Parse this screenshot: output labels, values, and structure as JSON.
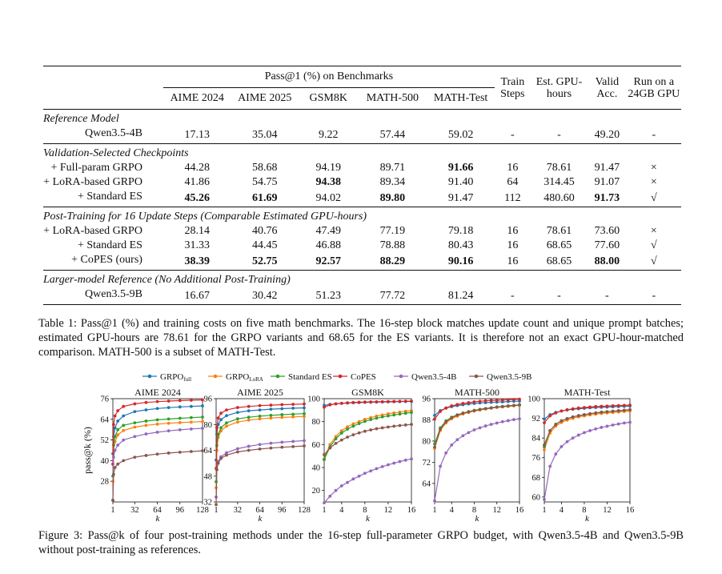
{
  "table": {
    "group_header": "Pass@1 (%) on Benchmarks",
    "bench_headers": [
      "AIME 2024",
      "AIME 2025",
      "GSM8K",
      "MATH-500",
      "MATH-Test"
    ],
    "extra_headers": [
      [
        "Train",
        "Steps"
      ],
      [
        "Est. GPU-",
        "hours"
      ],
      [
        "Valid",
        "Acc."
      ],
      [
        "Run on a",
        "24GB GPU"
      ]
    ],
    "sections": [
      {
        "title": "Reference Model",
        "rows": [
          {
            "label": "Qwen3.5-4B",
            "cells": [
              "17.13",
              "35.04",
              "9.22",
              "57.44",
              "59.02",
              "-",
              "-",
              "49.20",
              "-"
            ],
            "bold": []
          }
        ]
      },
      {
        "title": "Validation-Selected Checkpoints",
        "rows": [
          {
            "label": "+ Full-param GRPO",
            "cells": [
              "44.28",
              "58.68",
              "94.19",
              "89.71",
              "91.66",
              "16",
              "78.61",
              "91.47",
              "×"
            ],
            "bold": [
              4
            ]
          },
          {
            "label": "+ LoRA-based GRPO",
            "cells": [
              "41.86",
              "54.75",
              "94.38",
              "89.34",
              "91.40",
              "64",
              "314.45",
              "91.07",
              "×"
            ],
            "bold": [
              2
            ]
          },
          {
            "label": "+ Standard ES",
            "cells": [
              "45.26",
              "61.69",
              "94.02",
              "89.80",
              "91.47",
              "112",
              "480.60",
              "91.73",
              "√"
            ],
            "bold": [
              0,
              1,
              3,
              7
            ]
          }
        ]
      },
      {
        "title": "Post-Training for 16 Update Steps (Comparable Estimated GPU-hours)",
        "rows": [
          {
            "label": "+ LoRA-based GRPO",
            "cells": [
              "28.14",
              "40.76",
              "47.49",
              "77.19",
              "79.18",
              "16",
              "78.61",
              "73.60",
              "×"
            ],
            "bold": []
          },
          {
            "label": "+ Standard ES",
            "cells": [
              "31.33",
              "44.45",
              "46.88",
              "78.88",
              "80.43",
              "16",
              "68.65",
              "77.60",
              "√"
            ],
            "bold": []
          },
          {
            "label": "+ CoPES (ours)",
            "cells": [
              "38.39",
              "52.75",
              "92.57",
              "88.29",
              "90.16",
              "16",
              "68.65",
              "88.00",
              "√"
            ],
            "bold": [
              0,
              1,
              2,
              3,
              4,
              7
            ]
          }
        ]
      },
      {
        "title": "Larger-model Reference (No Additional Post-Training)",
        "rows": [
          {
            "label": "Qwen3.5-9B",
            "cells": [
              "16.67",
              "30.42",
              "51.23",
              "77.72",
              "81.24",
              "-",
              "-",
              "-",
              "-"
            ],
            "bold": []
          }
        ]
      }
    ],
    "caption": "Table 1: Pass@1 (%) and training costs on five math benchmarks. The 16-step block matches update count and unique prompt batches; estimated GPU-hours are 78.61 for the GRPO variants and 68.65 for the ES variants. It is therefore not an exact GPU-hour-matched comparison. MATH-500 is a subset of MATH-Test."
  },
  "figure": {
    "caption": "Figure 3: Pass@k of four post-training methods under the 16-step full-parameter GRPO budget, with Qwen3.5-4B and Qwen3.5-9B without post-training as references."
  },
  "chart_data": [
    {
      "type": "line",
      "title": "AIME 2024",
      "xlabel": "k",
      "ylabel": "pass@k (%)",
      "x": [
        1,
        2,
        4,
        8,
        16,
        32,
        48,
        64,
        80,
        96,
        112,
        128
      ],
      "xticks": [
        1,
        32,
        64,
        96,
        128
      ],
      "yticks": [
        28,
        40,
        52,
        64,
        76
      ],
      "ylim": [
        16,
        76
      ],
      "colors": [
        "#1f77b4",
        "#ff7f0e",
        "#2ca02c",
        "#d62728",
        "#9467bd",
        "#8c564b"
      ],
      "series": [
        {
          "name": "GRPO_full",
          "values": [
            44,
            54,
            59,
            63,
            66,
            68.5,
            69.5,
            70.3,
            70.8,
            71.2,
            71.5,
            71.8
          ]
        },
        {
          "name": "GRPO_LoRA",
          "values": [
            28,
            46,
            51,
            55,
            57.5,
            59.5,
            60.5,
            61.2,
            61.7,
            62.1,
            62.4,
            62.7
          ]
        },
        {
          "name": "Standard ES",
          "values": [
            31,
            49,
            54,
            58,
            60.5,
            62,
            63,
            63.7,
            64.2,
            64.6,
            65,
            65.3
          ]
        },
        {
          "name": "CoPES",
          "values": [
            38,
            61,
            66,
            69,
            71.5,
            73,
            73.8,
            74.3,
            74.6,
            74.9,
            75.1,
            75.3
          ]
        },
        {
          "name": "Qwen3.5-4B",
          "values": [
            17,
            42,
            46,
            49,
            52,
            54,
            55.5,
            56.5,
            57.3,
            57.9,
            58.4,
            58.8
          ]
        },
        {
          "name": "Qwen3.5-9B",
          "values": [
            17,
            32,
            36,
            38,
            40,
            42,
            43,
            43.8,
            44.4,
            44.9,
            45.3,
            45.7
          ]
        }
      ]
    },
    {
      "type": "line",
      "title": "AIME 2025",
      "xlabel": "k",
      "x": [
        1,
        2,
        4,
        8,
        16,
        32,
        48,
        64,
        80,
        96,
        112,
        128
      ],
      "xticks": [
        1,
        32,
        64,
        96,
        128
      ],
      "yticks": [
        32,
        48,
        64,
        80,
        96
      ],
      "ylim": [
        32,
        96
      ],
      "colors": [
        "#1f77b4",
        "#ff7f0e",
        "#2ca02c",
        "#d62728",
        "#9467bd",
        "#8c564b"
      ],
      "series": [
        {
          "name": "GRPO_full",
          "values": [
            58,
            74,
            80,
            83,
            85.5,
            87.5,
            88.5,
            89,
            89.5,
            89.8,
            90.1,
            90.3
          ]
        },
        {
          "name": "GRPO_LoRA",
          "values": [
            40.8,
            64,
            72,
            76,
            79,
            81.5,
            82.7,
            83.5,
            84,
            84.4,
            84.7,
            85
          ]
        },
        {
          "name": "Standard ES",
          "values": [
            44.5,
            67,
            74,
            78,
            81,
            83.5,
            84.5,
            85.2,
            85.7,
            86.1,
            86.4,
            86.7
          ]
        },
        {
          "name": "CoPES",
          "values": [
            52.8,
            78,
            84,
            87,
            89,
            90.5,
            91.2,
            91.7,
            92,
            92.3,
            92.5,
            92.7
          ]
        },
        {
          "name": "Qwen3.5-4B",
          "values": [
            35,
            52,
            57,
            60,
            62.5,
            65,
            66.5,
            67.6,
            68.4,
            69,
            69.5,
            70
          ]
        },
        {
          "name": "Qwen3.5-9B",
          "values": [
            30.4,
            52,
            56,
            59,
            61,
            63,
            64,
            64.8,
            65.4,
            65.9,
            66.3,
            66.7
          ]
        }
      ]
    },
    {
      "type": "line",
      "title": "GSM8K",
      "xlabel": "k",
      "x": [
        1,
        2,
        3,
        4,
        5,
        6,
        7,
        8,
        9,
        10,
        11,
        12,
        13,
        14,
        15,
        16
      ],
      "xticks": [
        1,
        4,
        8,
        12,
        16
      ],
      "yticks": [
        20,
        40,
        60,
        80,
        100
      ],
      "ylim": [
        10,
        100
      ],
      "colors": [
        "#1f77b4",
        "#ff7f0e",
        "#2ca02c",
        "#d62728",
        "#9467bd",
        "#8c564b"
      ],
      "series": [
        {
          "name": "GRPO_full",
          "values": [
            94.2,
            95,
            95.5,
            95.9,
            96.2,
            96.4,
            96.6,
            96.8,
            96.9,
            97,
            97.1,
            97.2,
            97.3,
            97.4,
            97.5,
            97.6
          ]
        },
        {
          "name": "GRPO_LoRA",
          "values": [
            47.5,
            60,
            67,
            72,
            75.5,
            78,
            80,
            82,
            83.5,
            84.8,
            85.8,
            86.8,
            87.6,
            88.3,
            89,
            89.6
          ]
        },
        {
          "name": "Standard ES",
          "values": [
            46.9,
            58,
            65,
            70,
            73.5,
            76,
            78.3,
            80.2,
            81.8,
            83,
            84.1,
            85,
            85.8,
            86.6,
            87.3,
            88
          ]
        },
        {
          "name": "CoPES",
          "values": [
            92.6,
            94.6,
            95.5,
            96,
            96.4,
            96.7,
            96.9,
            97.1,
            97.2,
            97.3,
            97.4,
            97.5,
            97.6,
            97.7,
            97.8,
            97.9
          ]
        },
        {
          "name": "Qwen3.5-4B",
          "values": [
            9.2,
            15,
            20,
            24,
            27,
            30,
            32.5,
            35,
            37,
            39,
            40.8,
            42.4,
            43.8,
            45.2,
            46.4,
            47.5
          ]
        },
        {
          "name": "Qwen3.5-9B",
          "values": [
            51.2,
            57,
            61,
            64,
            66.5,
            68.5,
            70.2,
            71.6,
            72.8,
            73.8,
            74.6,
            75.3,
            76,
            76.6,
            77.1,
            77.6
          ]
        }
      ]
    },
    {
      "type": "line",
      "title": "MATH-500",
      "xlabel": "k",
      "x": [
        1,
        2,
        3,
        4,
        5,
        6,
        7,
        8,
        9,
        10,
        11,
        12,
        13,
        14,
        15,
        16
      ],
      "xticks": [
        1,
        4,
        8,
        12,
        16
      ],
      "yticks": [
        64,
        72,
        80,
        88,
        96
      ],
      "ylim": [
        57,
        96
      ],
      "colors": [
        "#1f77b4",
        "#ff7f0e",
        "#2ca02c",
        "#d62728",
        "#9467bd",
        "#8c564b"
      ],
      "series": [
        {
          "name": "GRPO_full",
          "values": [
            89.7,
            91.5,
            92.4,
            93,
            93.4,
            93.7,
            94,
            94.2,
            94.4,
            94.5,
            94.6,
            94.7,
            94.8,
            94.9,
            95,
            95.1
          ]
        },
        {
          "name": "GRPO_LoRA",
          "values": [
            77.2,
            84,
            86.8,
            88.4,
            89.4,
            90.2,
            90.8,
            91.3,
            91.7,
            92.1,
            92.4,
            92.7,
            92.9,
            93.1,
            93.3,
            93.5
          ]
        },
        {
          "name": "Standard ES",
          "values": [
            78.9,
            85,
            87.6,
            89,
            89.9,
            90.6,
            91.1,
            91.6,
            92,
            92.3,
            92.6,
            92.9,
            93.1,
            93.3,
            93.5,
            93.7
          ]
        },
        {
          "name": "CoPES",
          "values": [
            88.3,
            91.2,
            92.5,
            93.3,
            93.8,
            94.2,
            94.5,
            94.8,
            95,
            95.2,
            95.3,
            95.4,
            95.5,
            95.6,
            95.7,
            95.8
          ]
        },
        {
          "name": "Qwen3.5-4B",
          "values": [
            57.4,
            70.5,
            75.5,
            78.5,
            80.5,
            82,
            83.2,
            84.2,
            85,
            85.7,
            86.3,
            86.8,
            87.3,
            87.7,
            88.1,
            88.4
          ]
        },
        {
          "name": "Qwen3.5-9B",
          "values": [
            77.7,
            84.5,
            87.3,
            88.8,
            89.8,
            90.5,
            91,
            91.5,
            91.9,
            92.2,
            92.5,
            92.8,
            93,
            93.2,
            93.4,
            93.6
          ]
        }
      ]
    },
    {
      "type": "line",
      "title": "MATH-Test",
      "xlabel": "k",
      "x": [
        1,
        2,
        3,
        4,
        5,
        6,
        7,
        8,
        9,
        10,
        11,
        12,
        13,
        14,
        15,
        16
      ],
      "xticks": [
        1,
        4,
        8,
        12,
        16
      ],
      "yticks": [
        60,
        68,
        76,
        84,
        92,
        100
      ],
      "ylim": [
        58,
        100
      ],
      "colors": [
        "#1f77b4",
        "#ff7f0e",
        "#2ca02c",
        "#d62728",
        "#9467bd",
        "#8c564b"
      ],
      "series": [
        {
          "name": "GRPO_full",
          "values": [
            91.7,
            93.5,
            94.4,
            95,
            95.4,
            95.7,
            95.9,
            96.1,
            96.3,
            96.4,
            96.5,
            96.6,
            96.7,
            96.8,
            96.9,
            97
          ]
        },
        {
          "name": "GRPO_LoRA",
          "values": [
            79.2,
            86,
            88.8,
            90.3,
            91.3,
            92,
            92.6,
            93,
            93.4,
            93.7,
            94,
            94.2,
            94.4,
            94.6,
            94.8,
            95
          ]
        },
        {
          "name": "Standard ES",
          "values": [
            80.4,
            87,
            89.6,
            91,
            91.9,
            92.6,
            93.1,
            93.5,
            93.9,
            94.2,
            94.5,
            94.7,
            94.9,
            95.1,
            95.3,
            95.5
          ]
        },
        {
          "name": "CoPES",
          "values": [
            90.2,
            93,
            94.2,
            95,
            95.5,
            95.9,
            96.2,
            96.4,
            96.6,
            96.8,
            96.9,
            97,
            97.1,
            97.2,
            97.3,
            97.4
          ]
        },
        {
          "name": "Qwen3.5-4B",
          "values": [
            59,
            72.5,
            77.5,
            80.5,
            82.5,
            84,
            85.2,
            86.2,
            87,
            87.7,
            88.3,
            88.8,
            89.3,
            89.7,
            90.1,
            90.4
          ]
        },
        {
          "name": "Qwen3.5-9B",
          "values": [
            81.2,
            87,
            89.5,
            91,
            91.9,
            92.6,
            93.1,
            93.5,
            93.9,
            94.2,
            94.5,
            94.7,
            94.9,
            95.1,
            95.3,
            95.5
          ]
        }
      ]
    }
  ]
}
